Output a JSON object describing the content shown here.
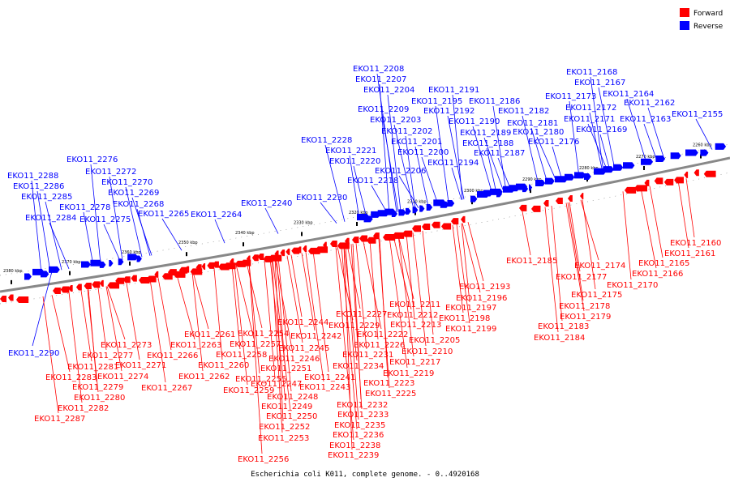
{
  "caption": "Escherichia coli K011, complete genome. - 0..4920168",
  "legend": [
    {
      "label": "Forward",
      "color": "#ff0000"
    },
    {
      "label": "Reverse",
      "color": "#0000ff"
    }
  ],
  "colors": {
    "forward": "#ff0000",
    "reverse": "#0000ff",
    "axis": "#888888"
  },
  "ticks": [
    "2380 kbp",
    "2370 kbp",
    "2360 kbp",
    "2350 kbp",
    "2340 kbp",
    "2330 kbp",
    "2320 kbp",
    "2310 kbp",
    "2300 kbp",
    "2290 kbp",
    "2280 kbp",
    "2270 kbp",
    "2260 kbp"
  ],
  "reverse_labels": [
    "EKO11_2288",
    "EKO11_2286",
    "EKO11_2285",
    "EKO11_2284",
    "EKO11_2276",
    "EKO11_2272",
    "EKO11_2270",
    "EKO11_2269",
    "EKO11_2278",
    "EKO11_2268",
    "EKO11_2275",
    "EKO11_2265",
    "EKO11_2264",
    "EKO11_2240",
    "EKO11_2230",
    "EKO11_2228",
    "EKO11_2221",
    "EKO11_2220",
    "EKO11_2218",
    "EKO11_2208",
    "EKO11_2207",
    "EKO11_2204",
    "EKO11_2209",
    "EKO11_2203",
    "EKO11_2202",
    "EKO11_2201",
    "EKO11_2200",
    "EKO11_2206",
    "EKO11_2191",
    "EKO11_2195",
    "EKO11_2192",
    "EKO11_2190",
    "EKO11_2194",
    "EKO11_2186",
    "EKO11_2182",
    "EKO11_2189",
    "EKO11_2188",
    "EKO11_2187",
    "EKO11_2181",
    "EKO11_2180",
    "EKO11_2176",
    "EKO11_2168",
    "EKO11_2167",
    "EKO11_2164",
    "EKO11_2173",
    "EKO11_2172",
    "EKO11_2162",
    "EKO11_2171",
    "EKO11_2169",
    "EKO11_2163",
    "EKO11_2155",
    "EKO11_2290"
  ],
  "forward_labels": [
    "EKO11_2160",
    "EKO11_2161",
    "EKO11_2165",
    "EKO11_2166",
    "EKO11_2174",
    "EKO11_2170",
    "EKO11_2177",
    "EKO11_2175",
    "EKO11_2178",
    "EKO11_2179",
    "EKO11_2185",
    "EKO11_2183",
    "EKO11_2184",
    "EKO11_2193",
    "EKO11_2196",
    "EKO11_2197",
    "EKO11_2198",
    "EKO11_2199",
    "EKO11_2211",
    "EKO11_2212",
    "EKO11_2213",
    "EKO11_2205",
    "EKO11_2210",
    "EKO11_2217",
    "EKO11_2219",
    "EKO11_2223",
    "EKO11_2225",
    "EKO11_2227",
    "EKO11_2229",
    "EKO11_2222",
    "EKO11_2226",
    "EKO11_2231",
    "EKO11_2234",
    "EKO11_2241",
    "EKO11_2243",
    "EKO11_2232",
    "EKO11_2233",
    "EKO11_2235",
    "EKO11_2236",
    "EKO11_2238",
    "EKO11_2239",
    "EKO11_2244",
    "EKO11_2242",
    "EKO11_2245",
    "EKO11_2246",
    "EKO11_2251",
    "EKO11_2247",
    "EKO11_2248",
    "EKO11_2249",
    "EKO11_2250",
    "EKO11_2252",
    "EKO11_2253",
    "EKO11_2256",
    "EKO11_2254",
    "EKO11_2257",
    "EKO11_2258",
    "EKO11_2255",
    "EKO11_2259",
    "EKO11_2261",
    "EKO11_2263",
    "EKO11_2260",
    "EKO11_2262",
    "EKO11_2266",
    "EKO11_2267",
    "EKO11_2273",
    "EKO11_2277",
    "EKO11_2281",
    "EKO11_2271",
    "EKO11_2274",
    "EKO11_2283",
    "EKO11_2279",
    "EKO11_2280",
    "EKO11_2282",
    "EKO11_2287"
  ]
}
